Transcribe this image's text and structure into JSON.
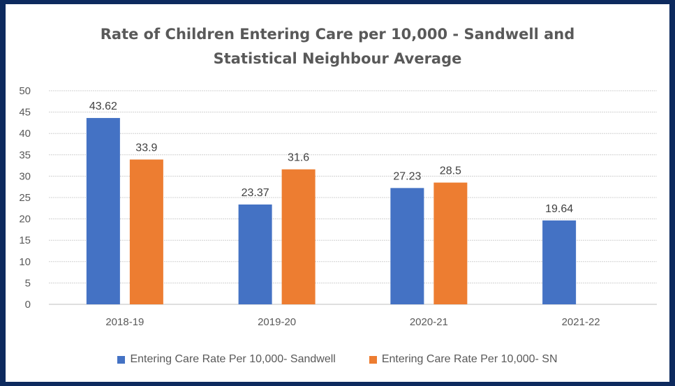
{
  "chart_data": {
    "type": "bar",
    "title_line1": "Rate of Children Entering Care per 10,000 - Sandwell and",
    "title_line2": "Statistical Neighbour Average",
    "categories": [
      "2018-19",
      "2019-20",
      "2020-21",
      "2021-22"
    ],
    "series": [
      {
        "name": "Entering Care Rate Per 10,000- Sandwell",
        "color": "#4472c4",
        "values": [
          43.62,
          23.37,
          27.23,
          19.64
        ],
        "labels": [
          "43.62",
          "23.37",
          "27.23",
          "19.64"
        ]
      },
      {
        "name": "Entering Care Rate Per 10,000- SN",
        "color": "#ed7d31",
        "values": [
          33.9,
          31.6,
          28.5,
          null
        ],
        "labels": [
          "33.9",
          "31.6",
          "28.5",
          null
        ]
      }
    ],
    "ylim": [
      0,
      50
    ],
    "yticks": [
      0,
      5,
      10,
      15,
      20,
      25,
      30,
      35,
      40,
      45,
      50
    ],
    "grid": true,
    "legend_position": "bottom"
  }
}
